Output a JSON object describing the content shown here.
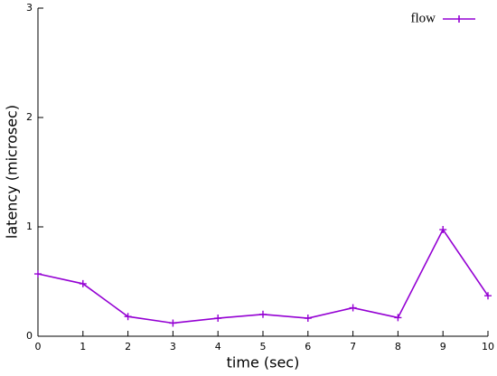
{
  "chart_data": {
    "type": "line",
    "xlabel": "time (sec)",
    "ylabel": "latency (microsec)",
    "x": [
      0,
      1,
      2,
      3,
      4,
      5,
      6,
      7,
      8,
      9,
      10
    ],
    "series": [
      {
        "name": "flow",
        "color": "#9400d3",
        "values": [
          0.57,
          0.48,
          0.18,
          0.12,
          0.165,
          0.2,
          0.165,
          0.26,
          0.17,
          0.975,
          0.37
        ]
      }
    ],
    "xlim": [
      0,
      10
    ],
    "ylim": [
      0,
      3
    ],
    "xticks": [
      0,
      1,
      2,
      3,
      4,
      5,
      6,
      7,
      8,
      9,
      10
    ],
    "yticks": [
      0,
      1,
      2,
      3
    ],
    "legend": "top-right"
  }
}
